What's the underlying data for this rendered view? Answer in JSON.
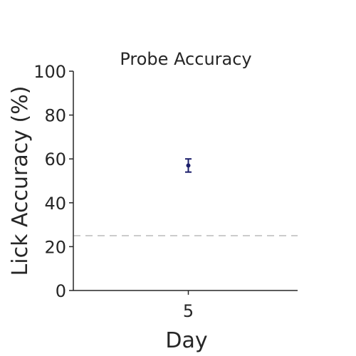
{
  "chart_data": {
    "type": "scatter",
    "title": "Probe Accuracy",
    "xlabel": "Day",
    "ylabel": "Lick Accuracy (%)",
    "categories": [
      "5"
    ],
    "series": [
      {
        "name": "Probe Accuracy",
        "color": "#1c1f6b",
        "points": [
          {
            "x": "5",
            "y": 57.0,
            "err_low": 54.0,
            "err_high": 60.0
          }
        ]
      }
    ],
    "reference_line": {
      "y": 25,
      "style": "dashed",
      "color": "#cccccc"
    },
    "ylim": [
      0,
      100
    ],
    "yticks": [
      "0",
      "20",
      "40",
      "60",
      "80",
      "100"
    ],
    "xticks": [
      "5"
    ],
    "grid": false,
    "legend": "none"
  }
}
